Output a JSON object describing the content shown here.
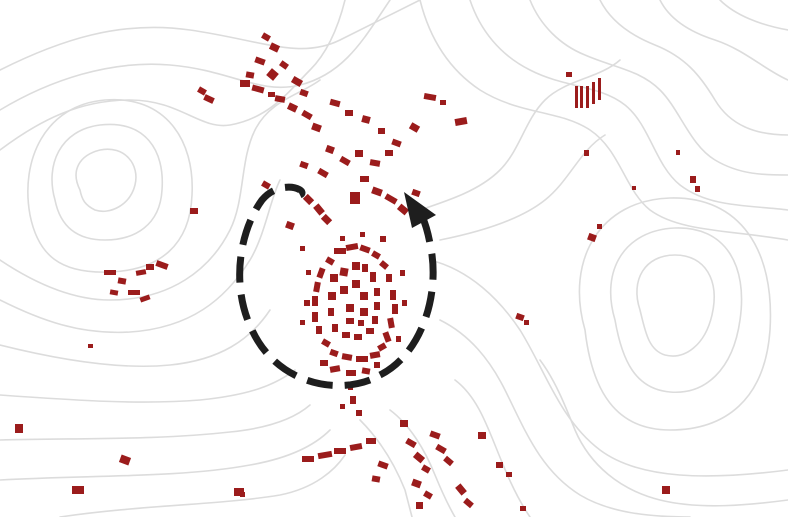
{
  "map": {
    "type": "topographic-settlement-map",
    "colors": {
      "background": "#ffffff",
      "contour": "#dcdcdc",
      "building": "#9b1c1c",
      "circulation_arrow": "#1e1e1e"
    },
    "layers": {
      "contours": true,
      "buildings": true,
      "circulation_loop": true
    },
    "annotations": [
      {
        "icon": "circulation-arrow-icon",
        "style": "dashed",
        "direction": "clockwise"
      }
    ]
  }
}
